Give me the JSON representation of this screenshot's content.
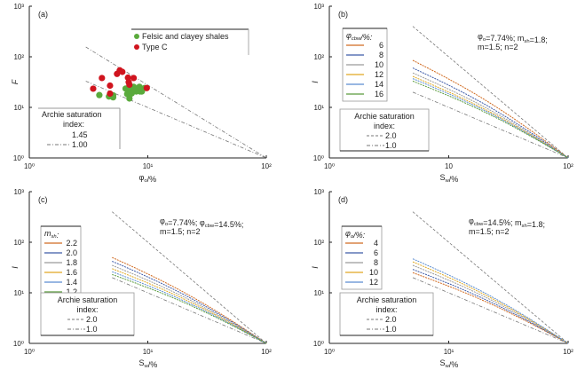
{
  "chart_data": [
    {
      "id": "a",
      "type": "scatter",
      "panel_label": "(a)",
      "xlabel": "φ_o/%",
      "ylabel": "F",
      "xscale": "log",
      "yscale": "log",
      "xlim": [
        1,
        100
      ],
      "ylim": [
        1,
        1000
      ],
      "xticks": [
        {
          "v": 1,
          "label": "10⁰"
        },
        {
          "v": 10,
          "label": "10¹"
        },
        {
          "v": 100,
          "label": "10²"
        }
      ],
      "yticks": [
        {
          "v": 1,
          "label": "10⁰"
        },
        {
          "v": 10,
          "label": "10¹"
        },
        {
          "v": 100,
          "label": "10²"
        },
        {
          "v": 1000,
          "label": "10³"
        }
      ],
      "series": [
        {
          "name": "Felsic and clayey shales",
          "color": "#5aaa3c",
          "points": [
            [
              3.9,
              17.5
            ],
            [
              4.7,
              16.4
            ],
            [
              5.1,
              17.3
            ],
            [
              5.1,
              15.8
            ],
            [
              6.5,
              23.5
            ],
            [
              6.7,
              18.4
            ],
            [
              6.9,
              20.3
            ],
            [
              7.1,
              22.3
            ],
            [
              7.2,
              19.2
            ],
            [
              7.4,
              19.9
            ],
            [
              7.6,
              25.5
            ],
            [
              7.9,
              23.5
            ],
            [
              8.3,
              22.5
            ],
            [
              8.5,
              25.5
            ],
            [
              8.6,
              20.6
            ],
            [
              8.9,
              20.6
            ],
            [
              9.4,
              24.1
            ],
            [
              7.0,
              15.0
            ],
            [
              7.3,
              18.8
            ],
            [
              8.0,
              20.6
            ]
          ]
        },
        {
          "name": "Type C",
          "color": "#d0141e",
          "points": [
            [
              3.46,
              23.4
            ],
            [
              4.1,
              38.0
            ],
            [
              4.8,
              26.9
            ],
            [
              4.8,
              18.7
            ],
            [
              5.5,
              45.9
            ],
            [
              5.8,
              54.0
            ],
            [
              6.1,
              50.3
            ],
            [
              6.8,
              38.7
            ],
            [
              6.9,
              31.4
            ],
            [
              7.0,
              28.0
            ],
            [
              7.6,
              38.0
            ],
            [
              9.8,
              24.1
            ]
          ]
        }
      ],
      "reference_lines": [
        {
          "name": "1.45",
          "style": "dash-dot",
          "points": [
            [
              3.0,
              156
            ],
            [
              100,
              1
            ]
          ]
        },
        {
          "name": "1.00",
          "style": "dash-dot",
          "points": [
            [
              3.0,
              33
            ],
            [
              100,
              1
            ]
          ]
        }
      ],
      "legend_title": "Archie saturation index:",
      "legend_entries": [
        "1.45",
        "1.00"
      ],
      "legend_position": "lower-left"
    },
    {
      "id": "b",
      "type": "line",
      "panel_label": "(b)",
      "xlabel": "S_w/%",
      "ylabel": "I",
      "xscale": "log",
      "yscale": "log",
      "xlim": [
        1,
        100
      ],
      "ylim": [
        1,
        1000
      ],
      "xticks": [
        {
          "v": 1,
          "label": "10⁰"
        },
        {
          "v": 10,
          "label": "10"
        },
        {
          "v": 100,
          "label": "10²"
        }
      ],
      "yticks": [
        {
          "v": 1,
          "label": "10⁰"
        },
        {
          "v": 10,
          "label": "10¹"
        },
        {
          "v": 100,
          "label": "10²"
        },
        {
          "v": 1000,
          "label": "10³"
        }
      ],
      "annotation": [
        "φ_o=7.74%; m_sh=1.8;",
        "m=1.5; n=2"
      ],
      "legend_title": "φ_cbw/%:",
      "series": [
        {
          "name": "6",
          "color": "#d06a20",
          "start": [
            5,
            85
          ]
        },
        {
          "name": "8",
          "color": "#3c5aa8",
          "start": [
            5,
            60
          ]
        },
        {
          "name": "10",
          "color": "#9a9a9a",
          "start": [
            5,
            48
          ]
        },
        {
          "name": "12",
          "color": "#e0a820",
          "start": [
            5,
            41
          ]
        },
        {
          "name": "14",
          "color": "#5a8cd0",
          "start": [
            5,
            37
          ]
        },
        {
          "name": "16",
          "color": "#5a9a3c",
          "start": [
            5,
            33
          ]
        }
      ],
      "reference_lines": [
        {
          "name": "2.0",
          "style": "dash",
          "points": [
            [
              5,
              400
            ],
            [
              100,
              1
            ]
          ]
        },
        {
          "name": "1.0",
          "style": "dash-dot",
          "points": [
            [
              5,
              20
            ],
            [
              100,
              1
            ]
          ]
        }
      ],
      "ref_legend_title": "Archie saturation index:",
      "ref_legend_entries": [
        "2.0",
        "1.0"
      ]
    },
    {
      "id": "c",
      "type": "line",
      "panel_label": "(c)",
      "xlabel": "S_w/%",
      "ylabel": "I",
      "xscale": "log",
      "yscale": "log",
      "xlim": [
        1,
        100
      ],
      "ylim": [
        1,
        1000
      ],
      "xticks": [
        {
          "v": 1,
          "label": "10⁰"
        },
        {
          "v": 10,
          "label": "10¹"
        },
        {
          "v": 100,
          "label": "10²"
        }
      ],
      "yticks": [
        {
          "v": 1,
          "label": "10⁰"
        },
        {
          "v": 10,
          "label": "10¹"
        },
        {
          "v": 100,
          "label": "10²"
        },
        {
          "v": 1000,
          "label": "10³"
        }
      ],
      "annotation": [
        "φ_o=7.74%; φ_cbw=14.5%;",
        "m=1.5; n=2"
      ],
      "legend_title": "m_sh:",
      "series": [
        {
          "name": "2.2",
          "color": "#d06a20",
          "start": [
            5,
            50
          ]
        },
        {
          "name": "2.0",
          "color": "#3c5aa8",
          "start": [
            5,
            42
          ]
        },
        {
          "name": "1.8",
          "color": "#9a9a9a",
          "start": [
            5,
            35
          ]
        },
        {
          "name": "1.6",
          "color": "#e0a820",
          "start": [
            5,
            30
          ]
        },
        {
          "name": "1.4",
          "color": "#5a8cd0",
          "start": [
            5,
            26
          ]
        },
        {
          "name": "1.2",
          "color": "#5a9a3c",
          "start": [
            5,
            23
          ]
        }
      ],
      "reference_lines": [
        {
          "name": "2.0",
          "style": "dash",
          "points": [
            [
              5,
              400
            ],
            [
              100,
              1
            ]
          ]
        },
        {
          "name": "1.0",
          "style": "dash-dot",
          "points": [
            [
              5,
              20
            ],
            [
              100,
              1
            ]
          ]
        }
      ],
      "ref_legend_title": "Archie saturation index:",
      "ref_legend_entries": [
        "2.0",
        "1.0"
      ]
    },
    {
      "id": "d",
      "type": "line",
      "panel_label": "(d)",
      "xlabel": "S_w/%",
      "ylabel": "I",
      "xscale": "log",
      "yscale": "log",
      "xlim": [
        1,
        100
      ],
      "ylim": [
        1,
        1000
      ],
      "xticks": [
        {
          "v": 1,
          "label": "10⁰"
        },
        {
          "v": 10,
          "label": "10¹"
        },
        {
          "v": 100,
          "label": "10²"
        }
      ],
      "yticks": [
        {
          "v": 1,
          "label": "10⁰"
        },
        {
          "v": 10,
          "label": "10¹"
        },
        {
          "v": 100,
          "label": "10²"
        },
        {
          "v": 1000,
          "label": "10³"
        }
      ],
      "annotation": [
        "φ_cbw=14.5%; m_sh=1.8;",
        "m=1.5; n=2"
      ],
      "legend_title": "φ_o/%:",
      "series": [
        {
          "name": "4",
          "color": "#d06a20",
          "start": [
            5,
            25
          ]
        },
        {
          "name": "6",
          "color": "#3c5aa8",
          "start": [
            5,
            29
          ]
        },
        {
          "name": "8",
          "color": "#9a9a9a",
          "start": [
            5,
            35
          ]
        },
        {
          "name": "10",
          "color": "#e0a820",
          "start": [
            5,
            41
          ]
        },
        {
          "name": "12",
          "color": "#5a8cd0",
          "start": [
            5,
            47
          ]
        }
      ],
      "reference_lines": [
        {
          "name": "2.0",
          "style": "dash",
          "points": [
            [
              5,
              400
            ],
            [
              100,
              1
            ]
          ]
        },
        {
          "name": "1.0",
          "style": "dash-dot",
          "points": [
            [
              5,
              20
            ],
            [
              100,
              1
            ]
          ]
        }
      ],
      "ref_legend_title": "Archie saturation index:",
      "ref_legend_entries": [
        "2.0",
        "1.0"
      ]
    }
  ]
}
